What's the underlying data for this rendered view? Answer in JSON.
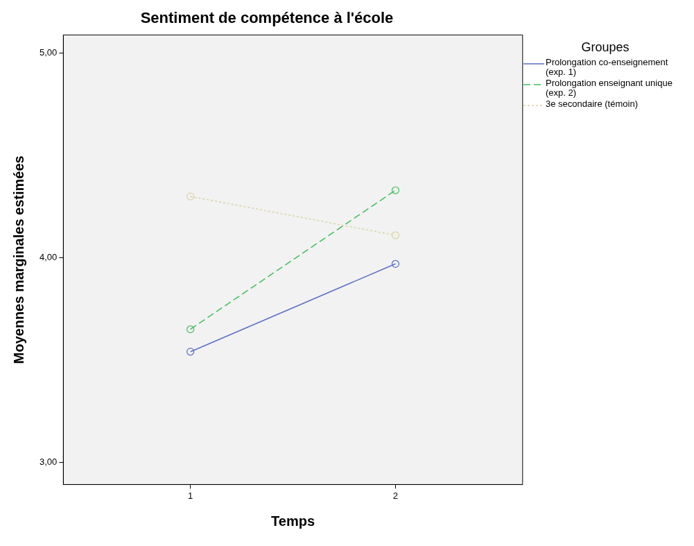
{
  "chart_data": {
    "type": "line",
    "title": "Sentiment de compétence à l'école",
    "xlabel": "Temps",
    "ylabel": "Moyennes marginales estimées",
    "legend_title": "Groupes",
    "legend": "right",
    "marker": "circle",
    "grid": false,
    "x": [
      1,
      2
    ],
    "xlim": [
      0.38,
      2.62
    ],
    "xticks": [
      1,
      2
    ],
    "ylim": [
      2.89,
      5.09
    ],
    "yticks": [
      {
        "value": 3,
        "label": "3,00"
      },
      {
        "value": 4,
        "label": "4,00"
      },
      {
        "value": 5,
        "label": "5,00"
      }
    ],
    "series": [
      {
        "name": "Prolongation co-enseignement (exp. 1)",
        "color": "#5a6fc6",
        "line_style": "solid",
        "values": [
          3.54,
          3.97
        ]
      },
      {
        "name": "Prolongation enseignant unique (exp. 2)",
        "color": "#3fbf5a",
        "line_style": "dashed",
        "values": [
          3.65,
          4.33
        ]
      },
      {
        "name": "3e secondaire (témoin)",
        "color": "#d9d4a2",
        "line_style": "dotted",
        "values": [
          4.3,
          4.11
        ]
      }
    ]
  }
}
